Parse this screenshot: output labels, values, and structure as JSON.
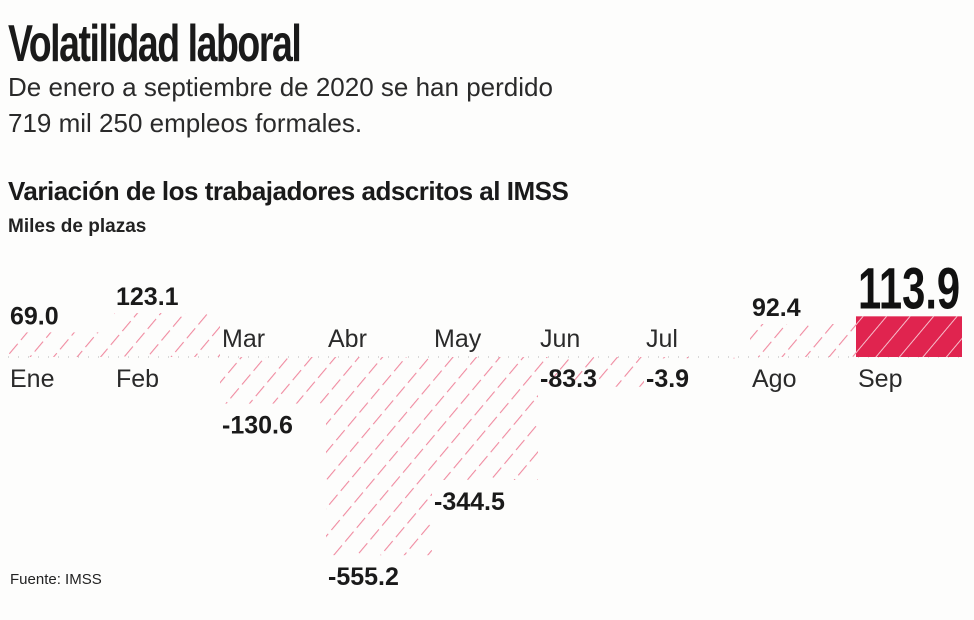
{
  "header": {
    "title": "Volatilidad laboral",
    "subtitle_line1": "De enero a septiembre de 2020 se han perdido",
    "subtitle_line2": "719 mil 250 empleos formales."
  },
  "chart_data": {
    "type": "bar",
    "title": "Variación de los trabajadores adscritos al IMSS",
    "ylabel": "Miles de plazas",
    "categories": [
      "Ene",
      "Feb",
      "Mar",
      "Abr",
      "May",
      "Jun",
      "Jul",
      "Ago",
      "Sep"
    ],
    "values": [
      69.0,
      123.1,
      -130.6,
      -555.2,
      -344.5,
      -83.3,
      -3.9,
      92.4,
      113.9
    ],
    "value_labels": [
      "69.0",
      "123.1",
      "-130.6",
      "-555.2",
      "-344.5",
      "-83.3",
      "-3.9",
      "92.4",
      "113.9"
    ],
    "highlight": "Sep",
    "grid": false,
    "colors": {
      "hatch": "#f08aa0",
      "highlight": "#e0244f"
    },
    "source": "Fuente: IMSS"
  }
}
